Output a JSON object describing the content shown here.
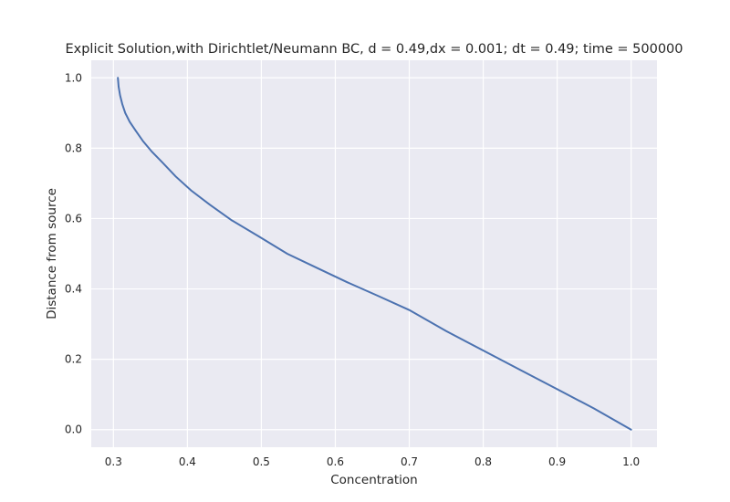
{
  "chart_data": {
    "type": "line",
    "title": "Explicit Solution,with Dirichtlet/Neumann BC, d = 0.49,dx = 0.001; dt = 0.49; time = 500000",
    "xlabel": "Concentration",
    "ylabel": "Distance from source",
    "xlim": [
      0.27,
      1.035
    ],
    "ylim": [
      -0.05,
      1.05
    ],
    "xticks": [
      "0.3",
      "0.4",
      "0.5",
      "0.6",
      "0.7",
      "0.8",
      "0.9",
      "1.0"
    ],
    "yticks": [
      "0.0",
      "0.2",
      "0.4",
      "0.6",
      "0.8",
      "1.0"
    ],
    "grid": true,
    "background": "#eaeaf2",
    "line_color": "#4c72b0",
    "series": [
      {
        "x": [
          0.306,
          0.307,
          0.309,
          0.312,
          0.316,
          0.322,
          0.33,
          0.34,
          0.352,
          0.366,
          0.384,
          0.405,
          0.43,
          0.46,
          0.496,
          0.535,
          0.575,
          0.615,
          0.658,
          0.7,
          0.75,
          0.8,
          0.85,
          0.9,
          0.95,
          1.0
        ],
        "y": [
          1.0,
          0.975,
          0.95,
          0.925,
          0.9,
          0.875,
          0.85,
          0.82,
          0.79,
          0.76,
          0.72,
          0.68,
          0.64,
          0.595,
          0.55,
          0.5,
          0.46,
          0.42,
          0.38,
          0.34,
          0.28,
          0.225,
          0.17,
          0.115,
          0.06,
          0.0
        ]
      }
    ]
  }
}
